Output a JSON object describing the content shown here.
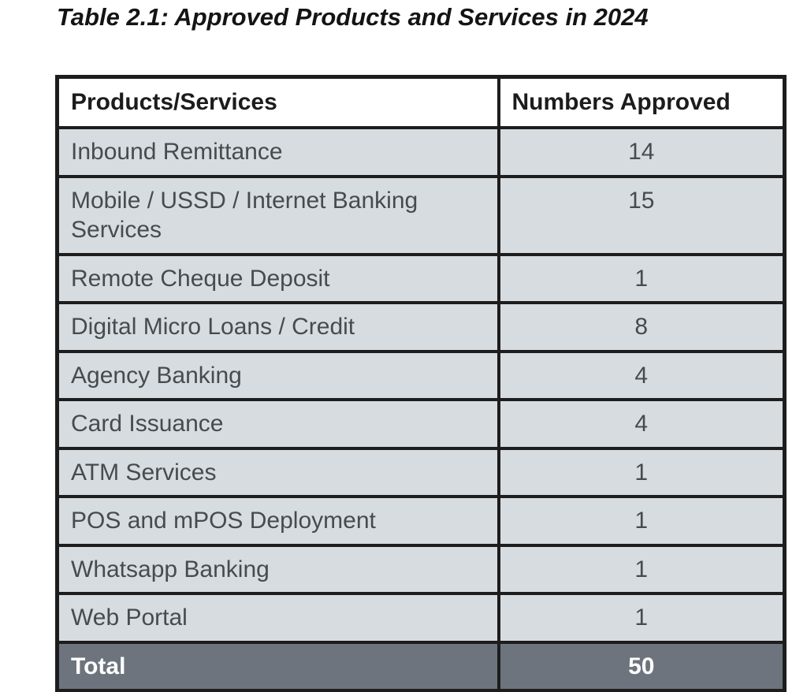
{
  "page": {
    "title": "Table 2.1: Approved Products and Services in 2024"
  },
  "table": {
    "columns": [
      "Products/Services",
      "Numbers Approved"
    ],
    "rows": [
      {
        "label": "Inbound Remittance",
        "value": "14"
      },
      {
        "label": "Mobile / USSD / Internet Banking Services",
        "value": "15"
      },
      {
        "label": "Remote Cheque Deposit",
        "value": "1"
      },
      {
        "label": "Digital Micro Loans / Credit",
        "value": "8"
      },
      {
        "label": "Agency Banking",
        "value": "4"
      },
      {
        "label": "Card Issuance",
        "value": "4"
      },
      {
        "label": "ATM Services",
        "value": "1"
      },
      {
        "label": "POS and mPOS Deployment",
        "value": "1"
      },
      {
        "label": "Whatsapp Banking",
        "value": "1"
      },
      {
        "label": "Web Portal",
        "value": "1"
      }
    ],
    "total": {
      "label": "Total",
      "value": "50"
    }
  },
  "colors": {
    "row_background": "#d6dcdf",
    "total_row_background": "#6d747d",
    "border": "#1d1d1d",
    "body_text": "#464b50",
    "header_text": "#1c1c1c",
    "total_text": "#ffffff",
    "page_background": "#ffffff"
  },
  "chart_data": {
    "type": "table",
    "title": "Table 2.1: Approved Products and Services in 2024",
    "columns": [
      "Products/Services",
      "Numbers Approved"
    ],
    "rows": [
      [
        "Inbound Remittance",
        14
      ],
      [
        "Mobile / USSD / Internet Banking Services",
        15
      ],
      [
        "Remote Cheque Deposit",
        1
      ],
      [
        "Digital Micro Loans / Credit",
        8
      ],
      [
        "Agency Banking",
        4
      ],
      [
        "Card Issuance",
        4
      ],
      [
        "ATM Services",
        1
      ],
      [
        "POS and mPOS Deployment",
        1
      ],
      [
        "Whatsapp Banking",
        1
      ],
      [
        "Web Portal",
        1
      ]
    ],
    "total": [
      "Total",
      50
    ]
  }
}
